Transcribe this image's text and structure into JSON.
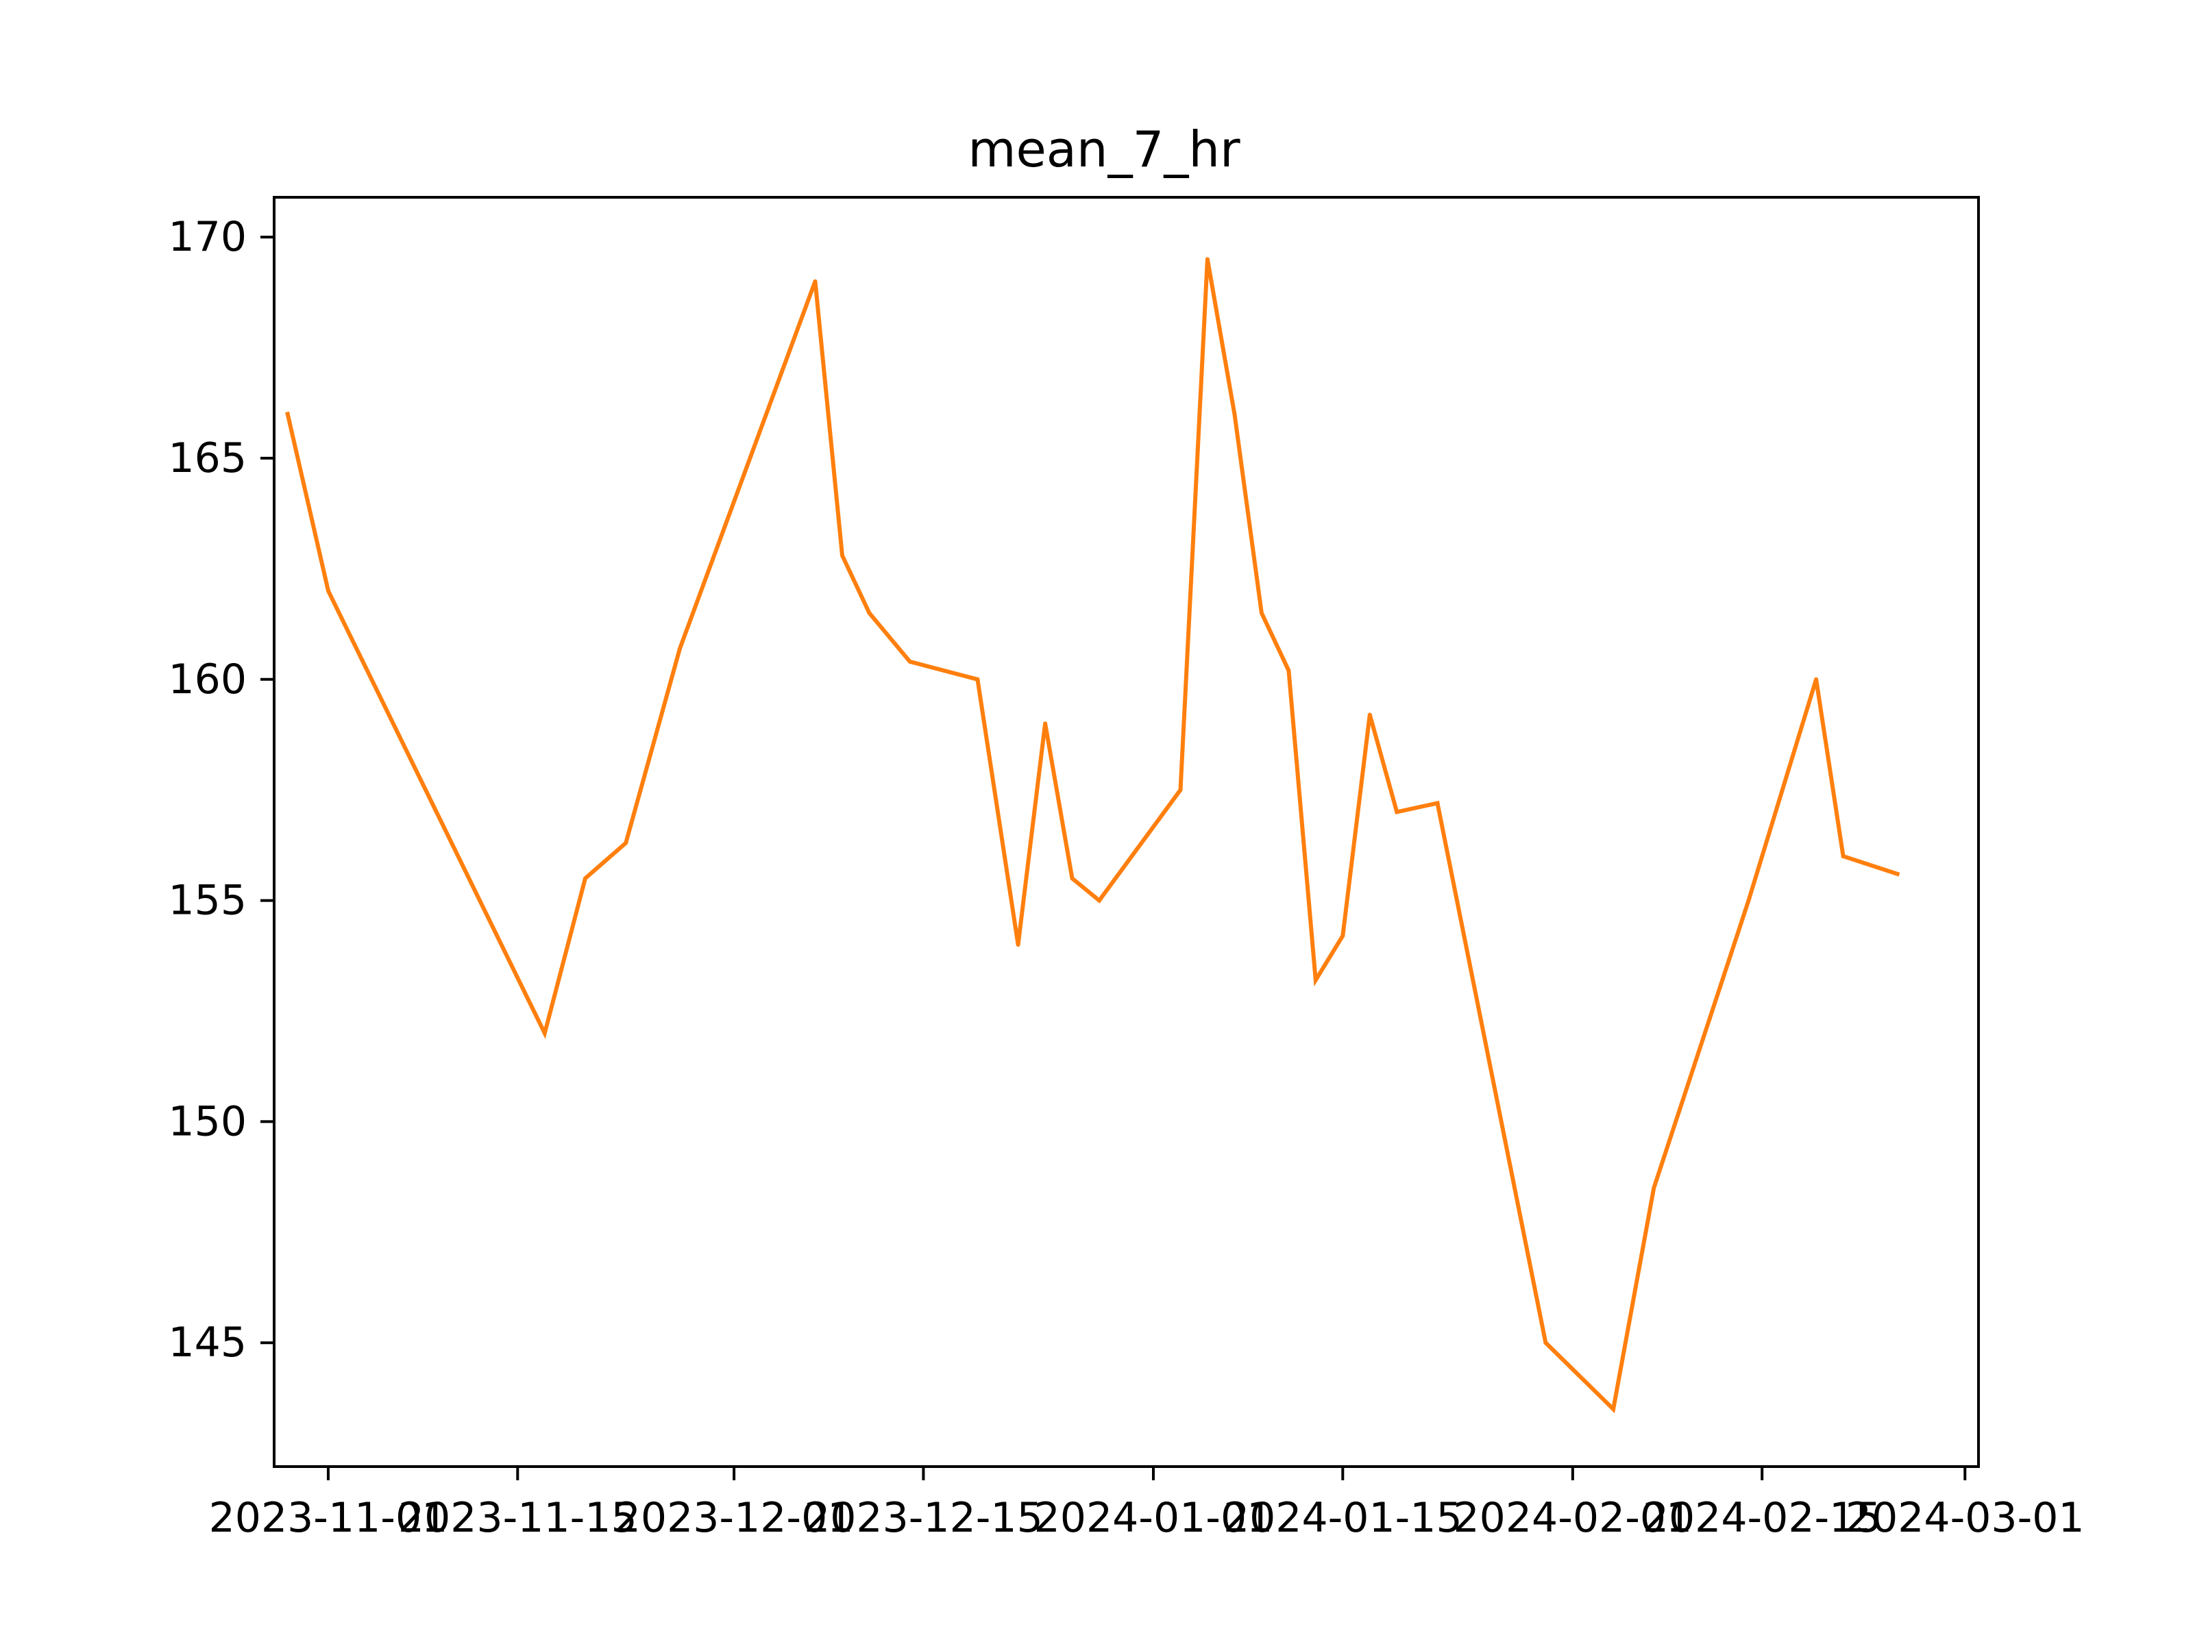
{
  "chart_data": {
    "type": "line",
    "title": "mean_7_hr",
    "xlabel": "",
    "ylabel": "",
    "x_is_date": true,
    "x_range": [
      "2023-10-28",
      "2024-03-02"
    ],
    "ylim": [
      142.2,
      170.9
    ],
    "x_ticks": [
      "2023-11-01",
      "2023-11-15",
      "2023-12-01",
      "2023-12-15",
      "2024-01-01",
      "2024-01-15",
      "2024-02-01",
      "2024-02-15",
      "2024-03-01"
    ],
    "y_ticks": [
      145,
      150,
      155,
      160,
      165,
      170
    ],
    "grid": false,
    "series": [
      {
        "color": "#ff7f0e",
        "x": [
          "2023-10-29",
          "2023-11-01",
          "2023-11-17",
          "2023-11-20",
          "2023-11-23",
          "2023-11-27",
          "2023-12-07",
          "2023-12-09",
          "2023-12-11",
          "2023-12-14",
          "2023-12-19",
          "2023-12-22",
          "2023-12-24",
          "2023-12-26",
          "2023-12-28",
          "2024-01-03",
          "2024-01-05",
          "2024-01-07",
          "2024-01-09",
          "2024-01-11",
          "2024-01-13",
          "2024-01-15",
          "2024-01-17",
          "2024-01-19",
          "2024-01-22",
          "2024-01-30",
          "2024-02-04",
          "2024-02-07",
          "2024-02-14",
          "2024-02-19",
          "2024-02-21",
          "2024-02-25"
        ],
        "y": [
          166.0,
          162.0,
          152.0,
          155.5,
          156.3,
          160.7,
          169.0,
          162.8,
          161.5,
          160.4,
          160.0,
          154.0,
          159.0,
          155.5,
          155.0,
          157.5,
          169.5,
          166.0,
          161.5,
          160.2,
          153.2,
          154.2,
          159.2,
          157.0,
          157.2,
          145.0,
          143.5,
          148.5,
          155.0,
          160.0,
          156.0,
          155.6
        ]
      }
    ]
  }
}
